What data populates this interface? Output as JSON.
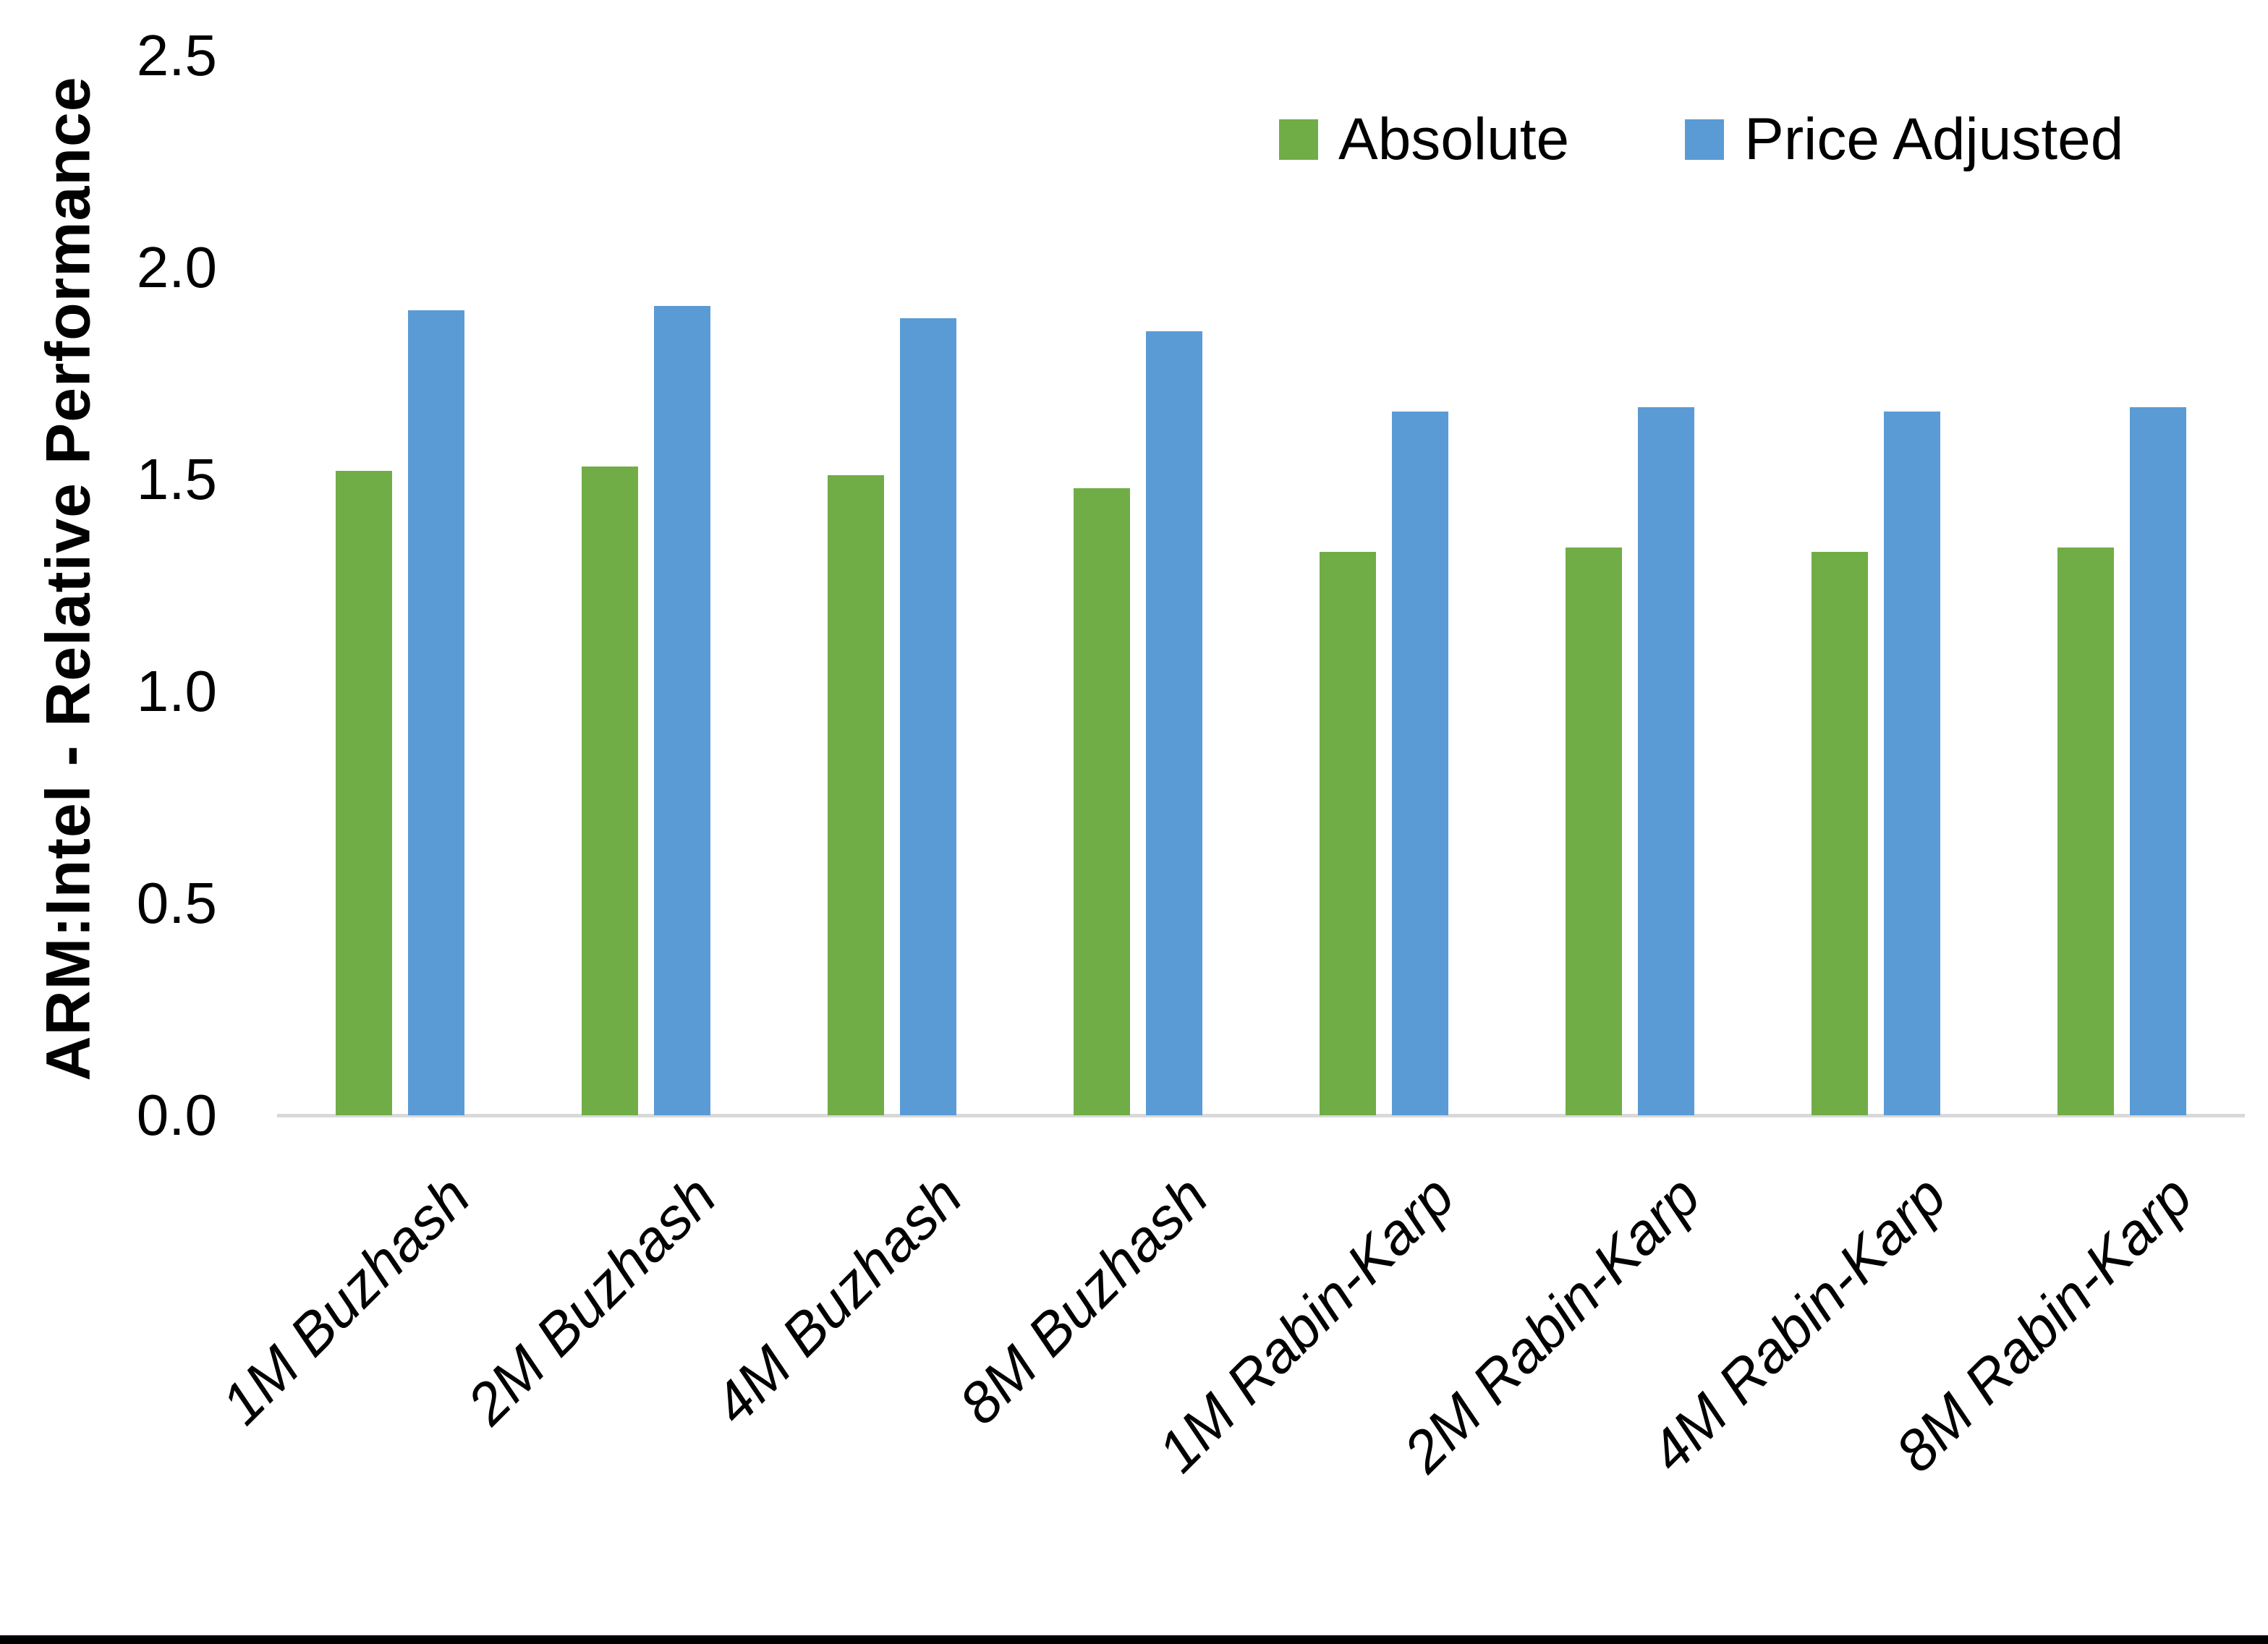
{
  "chart_data": {
    "type": "bar",
    "title": "",
    "ylabel": "ARM:Intel - Relative Performance",
    "xlabel": "",
    "categories": [
      "1M Buzhash",
      "2M Buzhash",
      "4M Buzhash",
      "8M Buzhash",
      "1M Rabin-Karp",
      "2M Rabin-Karp",
      "4M Rabin-Karp",
      "8M Rabin-Karp"
    ],
    "series": [
      {
        "name": "Absolute",
        "color": "#70AD47",
        "values": [
          1.52,
          1.53,
          1.51,
          1.48,
          1.33,
          1.34,
          1.33,
          1.34
        ]
      },
      {
        "name": "Price Adjusted",
        "color": "#5B9BD5",
        "values": [
          1.9,
          1.91,
          1.88,
          1.85,
          1.66,
          1.67,
          1.66,
          1.67
        ]
      }
    ],
    "ylim": [
      0.0,
      2.5
    ],
    "yticks": [
      "0.0",
      "0.5",
      "1.0",
      "1.5",
      "2.0",
      "2.5"
    ],
    "grid": false,
    "legend_position": "top-right",
    "xtick_rotation_deg": 45,
    "axis_line_color": "#D9D9D9",
    "text_color": "#000000",
    "background_color": "#FFFFFF",
    "bottom_border_color": "#000000"
  }
}
